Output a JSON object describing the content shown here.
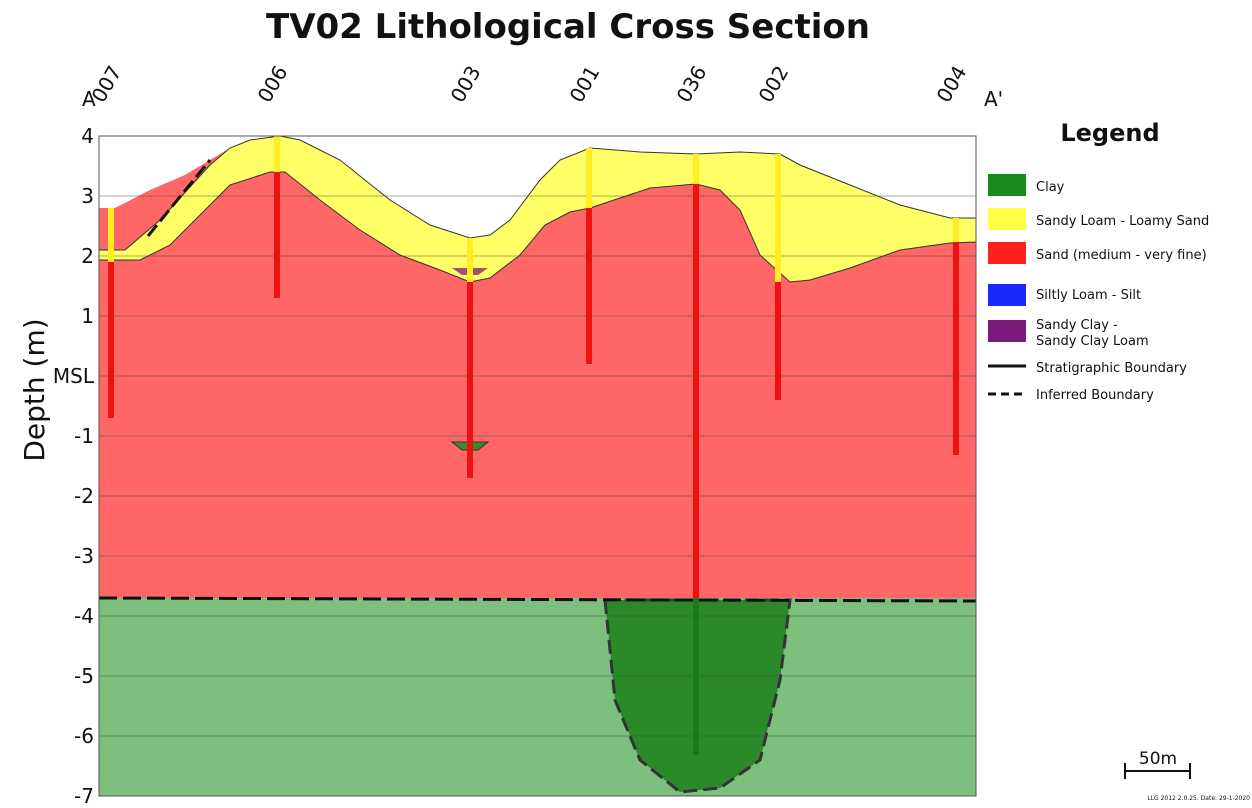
{
  "title": "TV02 Lithological Cross Section",
  "y_axis_label": "Depth (m)",
  "depth_ticks": [
    "4",
    "3",
    "2",
    "1",
    "MSL",
    "-1",
    "-2",
    "-3",
    "-4",
    "-5",
    "-6",
    "-7"
  ],
  "section_ends": [
    "A",
    "A'"
  ],
  "boreholes": [
    "007",
    "006",
    "003",
    "001",
    "036",
    "002",
    "004"
  ],
  "legend": {
    "title": "Legend",
    "items": [
      {
        "lines": [
          "Clay"
        ]
      },
      {
        "lines": [
          "Sandy Loam - Loamy Sand"
        ]
      },
      {
        "lines": [
          "Sand (medium - very fine)"
        ]
      },
      {
        "lines": [
          "Siltly Loam - Silt"
        ]
      },
      {
        "lines": [
          "Sandy Clay -",
          "Sandy Clay Loam"
        ]
      },
      {
        "lines": [
          "Stratigraphic Boundary"
        ]
      },
      {
        "lines": [
          "Inferred Boundary"
        ]
      }
    ]
  },
  "scale_bar": "50m",
  "footer": "LLG 2012 2.0.25. Date: 29-1-2020"
}
